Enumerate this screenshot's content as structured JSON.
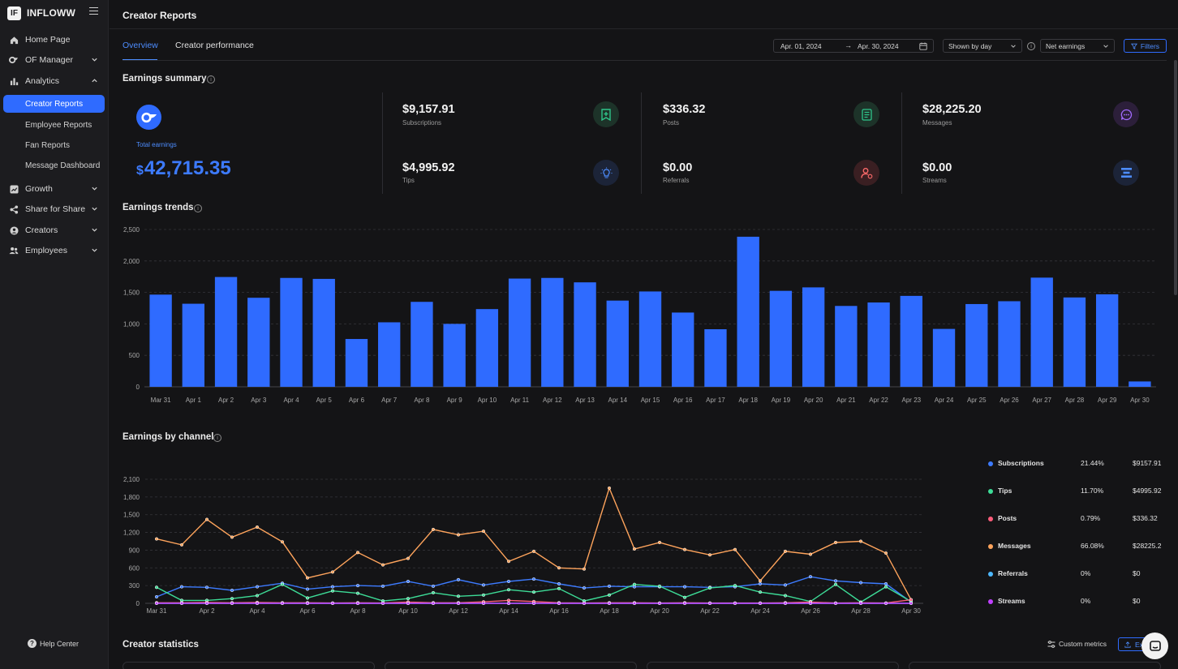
{
  "brand": {
    "name": "INFLOWW",
    "logo_text": "IF"
  },
  "sidebar": {
    "items": [
      {
        "label": "Home Page",
        "icon": "home-icon"
      },
      {
        "label": "OF Manager",
        "icon": "of-icon"
      },
      {
        "label": "Analytics",
        "icon": "bar-chart-icon"
      },
      {
        "label": "Growth",
        "icon": "growth-icon"
      },
      {
        "label": "Share for Share",
        "icon": "share-icon"
      },
      {
        "label": "Creators",
        "icon": "user-circle-icon"
      },
      {
        "label": "Employees",
        "icon": "users-icon"
      }
    ],
    "analytics_sub": [
      "Creator Reports",
      "Employee Reports",
      "Fan Reports",
      "Message Dashboard"
    ],
    "help": "Help Center"
  },
  "header": {
    "title": "Creator Reports"
  },
  "tabs": {
    "overview": "Overview",
    "creator_performance": "Creator performance"
  },
  "controls": {
    "date_start": "Apr. 01, 2024",
    "date_arrow": "→",
    "date_end": "Apr. 30, 2024",
    "shown_by": "Shown by day",
    "metric": "Net earnings",
    "filters": "Filters"
  },
  "summary": {
    "title": "Earnings summary",
    "total_label": "Total earnings",
    "total_currency": "$",
    "total_value": "42,715.35",
    "metrics": {
      "subscriptions": {
        "value": "$9,157.91",
        "label": "Subscriptions",
        "color": "#2fc48a"
      },
      "tips": {
        "value": "$4,995.92",
        "label": "Tips",
        "color": "#4d8dff"
      },
      "posts": {
        "value": "$336.32",
        "label": "Posts",
        "color": "#2fc48a"
      },
      "referrals": {
        "value": "$0.00",
        "label": "Referrals",
        "color": "#ff6b6b"
      },
      "messages": {
        "value": "$28,225.20",
        "label": "Messages",
        "color": "#a26bff"
      },
      "streams": {
        "value": "$0.00",
        "label": "Streams",
        "color": "#4d8dff"
      }
    }
  },
  "trends_title": "Earnings trends",
  "channel_title": "Earnings by channel",
  "legend": [
    {
      "name": "Subscriptions",
      "pct": "21.44%",
      "amount": "$9157.91",
      "color": "#3d7bff"
    },
    {
      "name": "Tips",
      "pct": "11.70%",
      "amount": "$4995.92",
      "color": "#3ddc97"
    },
    {
      "name": "Posts",
      "pct": "0.79%",
      "amount": "$336.32",
      "color": "#ff5c7a"
    },
    {
      "name": "Messages",
      "pct": "66.08%",
      "amount": "$28225.2",
      "color": "#ffa45c"
    },
    {
      "name": "Referrals",
      "pct": "0%",
      "amount": "$0",
      "color": "#4db8ff"
    },
    {
      "name": "Streams",
      "pct": "0%",
      "amount": "$0",
      "color": "#c040ff"
    }
  ],
  "stats": {
    "title": "Creator statistics",
    "custom_metrics": "Custom metrics",
    "export": "Export"
  },
  "chart_data": [
    {
      "type": "bar",
      "title": "Earnings trends",
      "categories": [
        "Mar 31",
        "Apr 1",
        "Apr 2",
        "Apr 3",
        "Apr 4",
        "Apr 5",
        "Apr 6",
        "Apr 7",
        "Apr 8",
        "Apr 9",
        "Apr 10",
        "Apr 11",
        "Apr 12",
        "Apr 13",
        "Apr 14",
        "Apr 15",
        "Apr 16",
        "Apr 17",
        "Apr 18",
        "Apr 19",
        "Apr 20",
        "Apr 21",
        "Apr 22",
        "Apr 23",
        "Apr 24",
        "Apr 25",
        "Apr 26",
        "Apr 27",
        "Apr 28",
        "Apr 29",
        "Apr 30"
      ],
      "values": [
        1465,
        1320,
        1745,
        1415,
        1730,
        1715,
        760,
        1025,
        1350,
        1000,
        1235,
        1720,
        1730,
        1660,
        1370,
        1515,
        1180,
        915,
        2385,
        1525,
        1580,
        1285,
        1340,
        1445,
        920,
        1315,
        1360,
        1735,
        1420,
        1470,
        85
      ],
      "ylim": [
        0,
        2500
      ],
      "yticks": [
        "0",
        "500",
        "1,000",
        "1,500",
        "2,000",
        "2,500"
      ],
      "color": "#2f6bff",
      "grid": true
    },
    {
      "type": "line",
      "title": "Earnings by channel",
      "x": [
        "Mar 31",
        "Apr 1",
        "Apr 2",
        "Apr 3",
        "Apr 4",
        "Apr 5",
        "Apr 6",
        "Apr 7",
        "Apr 8",
        "Apr 9",
        "Apr 10",
        "Apr 11",
        "Apr 12",
        "Apr 13",
        "Apr 14",
        "Apr 15",
        "Apr 16",
        "Apr 17",
        "Apr 18",
        "Apr 19",
        "Apr 20",
        "Apr 21",
        "Apr 22",
        "Apr 23",
        "Apr 24",
        "Apr 25",
        "Apr 26",
        "Apr 27",
        "Apr 28",
        "Apr 29",
        "Apr 30"
      ],
      "xtick_labels": [
        "Mar 31",
        "Apr 2",
        "Apr 4",
        "Apr 6",
        "Apr 8",
        "Apr 10",
        "Apr 12",
        "Apr 14",
        "Apr 16",
        "Apr 18",
        "Apr 20",
        "Apr 22",
        "Apr 24",
        "Apr 26",
        "Apr 28",
        "Apr 30"
      ],
      "ylim": [
        0,
        2100
      ],
      "yticks": [
        "0",
        "300",
        "600",
        "900",
        "1,200",
        "1,500",
        "1,800",
        "2,100"
      ],
      "grid": true,
      "series": [
        {
          "name": "Messages",
          "color": "#ffa45c",
          "values": [
            1090,
            990,
            1420,
            1120,
            1290,
            1040,
            430,
            530,
            860,
            650,
            760,
            1250,
            1160,
            1220,
            710,
            880,
            600,
            580,
            1950,
            920,
            1030,
            910,
            820,
            910,
            380,
            880,
            830,
            1030,
            1050,
            850,
            60
          ]
        },
        {
          "name": "Subscriptions",
          "color": "#3d7bff",
          "values": [
            110,
            280,
            270,
            220,
            280,
            340,
            240,
            280,
            300,
            290,
            370,
            290,
            400,
            310,
            370,
            410,
            330,
            260,
            290,
            280,
            280,
            280,
            270,
            280,
            330,
            310,
            450,
            380,
            350,
            330,
            20
          ]
        },
        {
          "name": "Tips",
          "color": "#3ddc97",
          "values": [
            270,
            50,
            50,
            80,
            130,
            320,
            90,
            210,
            170,
            40,
            80,
            180,
            120,
            140,
            230,
            190,
            250,
            40,
            140,
            320,
            290,
            100,
            260,
            300,
            190,
            130,
            30,
            320,
            20,
            280,
            30
          ]
        },
        {
          "name": "Posts",
          "color": "#ff5c7a",
          "values": [
            10,
            10,
            15,
            10,
            15,
            10,
            10,
            5,
            10,
            5,
            20,
            10,
            10,
            25,
            50,
            30,
            10,
            5,
            10,
            10,
            5,
            10,
            5,
            5,
            5,
            10,
            20,
            5,
            10,
            5,
            60
          ]
        },
        {
          "name": "Referrals",
          "color": "#4db8ff",
          "values": [
            0,
            0,
            0,
            0,
            0,
            0,
            0,
            0,
            0,
            0,
            0,
            0,
            0,
            0,
            0,
            0,
            0,
            0,
            0,
            0,
            0,
            0,
            0,
            0,
            0,
            0,
            0,
            0,
            0,
            0,
            0
          ]
        },
        {
          "name": "Streams",
          "color": "#c040ff",
          "values": [
            0,
            0,
            0,
            0,
            0,
            0,
            0,
            0,
            0,
            0,
            0,
            0,
            0,
            0,
            0,
            0,
            0,
            0,
            0,
            0,
            0,
            0,
            0,
            0,
            0,
            0,
            0,
            0,
            0,
            0,
            0
          ]
        }
      ]
    }
  ]
}
